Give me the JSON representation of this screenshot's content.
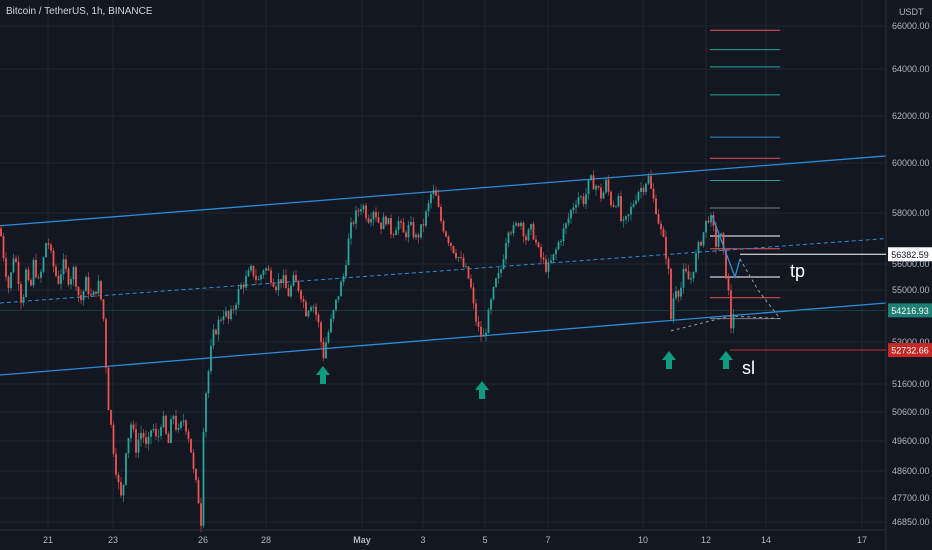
{
  "header": {
    "symbol_line": "Bitcoin / TetherUS, 1h, BINANCE"
  },
  "colors": {
    "background": "#131722",
    "grid": "#1f2430",
    "axis_text": "#b2b5be",
    "up": "#26a69a",
    "down": "#ef5350",
    "channel": "#2b8cd6",
    "arrow": "#0e9c80",
    "annotation": "#ffffff",
    "price_badge_teal": "#1e7f74",
    "price_badge_red": "#c62828"
  },
  "chart_data": {
    "type": "candlestick",
    "title": "Bitcoin / TetherUS, 1h, BINANCE",
    "y_axis_unit": "USDT",
    "y_ticks": [
      {
        "label": "66000.00",
        "value": 66000
      },
      {
        "label": "64000.00",
        "value": 64000
      },
      {
        "label": "62000.00",
        "value": 62000
      },
      {
        "label": "60000.00",
        "value": 60000
      },
      {
        "label": "58000.00",
        "value": 58000
      },
      {
        "label": "56000.00",
        "value": 56000
      },
      {
        "label": "55000.00",
        "value": 55000
      },
      {
        "label": "53000.00",
        "value": 53000
      },
      {
        "label": "51600.00",
        "value": 51600
      },
      {
        "label": "50600.00",
        "value": 50600
      },
      {
        "label": "49600.00",
        "value": 49600
      },
      {
        "label": "48600.00",
        "value": 48600
      },
      {
        "label": "47700.00",
        "value": 47700
      },
      {
        "label": "46850.00",
        "value": 46850
      }
    ],
    "x_ticks": [
      "21",
      "23",
      "26",
      "28",
      "May",
      "3",
      "5",
      "7",
      "10",
      "12",
      "14",
      "17"
    ],
    "x_tick_bold": "May",
    "ohlc_path": [
      [
        0,
        57400
      ],
      [
        4,
        56200
      ],
      [
        9,
        55000
      ],
      [
        14,
        56500
      ],
      [
        18,
        55600
      ],
      [
        22,
        54400
      ],
      [
        26,
        55700
      ],
      [
        30,
        54800
      ],
      [
        34,
        56200
      ],
      [
        38,
        55200
      ],
      [
        42,
        55800
      ],
      [
        47,
        57100
      ],
      [
        52,
        56100
      ],
      [
        58,
        55300
      ],
      [
        63,
        56000
      ],
      [
        69,
        55400
      ],
      [
        74,
        55800
      ],
      [
        80,
        54500
      ],
      [
        86,
        55300
      ],
      [
        92,
        54600
      ],
      [
        98,
        55300
      ],
      [
        103,
        54200
      ],
      [
        108,
        51000
      ],
      [
        113,
        49500
      ],
      [
        118,
        48200
      ],
      [
        122,
        47500
      ],
      [
        126,
        49400
      ],
      [
        131,
        50200
      ],
      [
        136,
        49400
      ],
      [
        142,
        50000
      ],
      [
        147,
        49200
      ],
      [
        152,
        50200
      ],
      [
        157,
        49500
      ],
      [
        162,
        50500
      ],
      [
        168,
        49400
      ],
      [
        173,
        50600
      ],
      [
        178,
        49800
      ],
      [
        184,
        50400
      ],
      [
        190,
        49600
      ],
      [
        194,
        48400
      ],
      [
        198,
        47800
      ],
      [
        201,
        46900
      ],
      [
        204,
        50800
      ],
      [
        208,
        51900
      ],
      [
        213,
        53200
      ],
      [
        218,
        53700
      ],
      [
        224,
        54200
      ],
      [
        229,
        53800
      ],
      [
        235,
        54500
      ],
      [
        240,
        55100
      ],
      [
        246,
        55400
      ],
      [
        252,
        55800
      ],
      [
        258,
        55300
      ],
      [
        264,
        55900
      ],
      [
        270,
        55600
      ],
      [
        276,
        55200
      ],
      [
        282,
        55500
      ],
      [
        288,
        54800
      ],
      [
        294,
        55400
      ],
      [
        300,
        55000
      ],
      [
        306,
        54200
      ],
      [
        312,
        54600
      ],
      [
        318,
        53800
      ],
      [
        323,
        52500
      ],
      [
        326,
        53000
      ],
      [
        332,
        53900
      ],
      [
        338,
        54800
      ],
      [
        344,
        55600
      ],
      [
        348,
        56800
      ],
      [
        352,
        57600
      ],
      [
        356,
        57900
      ],
      [
        362,
        58400
      ],
      [
        368,
        57800
      ],
      [
        374,
        58200
      ],
      [
        380,
        57500
      ],
      [
        386,
        57800
      ],
      [
        392,
        57200
      ],
      [
        398,
        57700
      ],
      [
        404,
        57100
      ],
      [
        410,
        57500
      ],
      [
        416,
        57000
      ],
      [
        422,
        57400
      ],
      [
        428,
        58200
      ],
      [
        432,
        58900
      ],
      [
        436,
        58600
      ],
      [
        440,
        57800
      ],
      [
        446,
        57200
      ],
      [
        452,
        56700
      ],
      [
        458,
        56300
      ],
      [
        462,
        56000
      ],
      [
        466,
        55700
      ],
      [
        470,
        55300
      ],
      [
        474,
        54200
      ],
      [
        478,
        53500
      ],
      [
        483,
        53100
      ],
      [
        487,
        53700
      ],
      [
        491,
        54500
      ],
      [
        496,
        55300
      ],
      [
        500,
        55600
      ],
      [
        504,
        56500
      ],
      [
        508,
        57500
      ],
      [
        514,
        57300
      ],
      [
        520,
        57800
      ],
      [
        526,
        57000
      ],
      [
        532,
        57400
      ],
      [
        538,
        56500
      ],
      [
        544,
        56000
      ],
      [
        548,
        55800
      ],
      [
        554,
        56300
      ],
      [
        560,
        57000
      ],
      [
        566,
        57500
      ],
      [
        572,
        58200
      ],
      [
        578,
        58700
      ],
      [
        584,
        58500
      ],
      [
        590,
        59300
      ],
      [
        596,
        59100
      ],
      [
        602,
        58600
      ],
      [
        606,
        59200
      ],
      [
        612,
        58300
      ],
      [
        618,
        58600
      ],
      [
        622,
        57400
      ],
      [
        628,
        57800
      ],
      [
        634,
        58500
      ],
      [
        638,
        58900
      ],
      [
        644,
        59100
      ],
      [
        648,
        59500
      ],
      [
        652,
        58700
      ],
      [
        656,
        58200
      ],
      [
        660,
        57400
      ],
      [
        664,
        56800
      ],
      [
        668,
        56000
      ],
      [
        671,
        53900
      ],
      [
        675,
        55200
      ],
      [
        680,
        54900
      ],
      [
        684,
        55700
      ],
      [
        690,
        55300
      ],
      [
        694,
        56000
      ],
      [
        699,
        56700
      ],
      [
        704,
        57300
      ],
      [
        708,
        57900
      ],
      [
        712,
        57600
      ],
      [
        716,
        56800
      ],
      [
        720,
        57300
      ],
      [
        724,
        56200
      ],
      [
        728,
        55100
      ],
      [
        731,
        53600
      ],
      [
        734,
        54300
      ]
    ],
    "channel_lines": [
      {
        "name": "upper",
        "from": [
          0,
          57500
        ],
        "to": [
          886,
          60300
        ]
      },
      {
        "name": "lower",
        "from": [
          0,
          51900
        ],
        "to": [
          886,
          54500
        ]
      }
    ],
    "mid_line": {
      "from": [
        0,
        54500
      ],
      "to": [
        886,
        57000
      ]
    },
    "projection_path": [
      [
        712,
        57900
      ],
      [
        735,
        55500
      ],
      [
        740,
        56200
      ],
      [
        758,
        55000
      ],
      [
        780,
        53900
      ],
      [
        730,
        54000
      ],
      [
        668,
        53400
      ]
    ],
    "levels": [
      {
        "price": 65800,
        "color": "#ef5350"
      },
      {
        "price": 64900,
        "color": "#26a69a"
      },
      {
        "price": 64100,
        "color": "#26a69a"
      },
      {
        "price": 62900,
        "color": "#26a69a"
      },
      {
        "price": 61100,
        "color": "#2b8cd6"
      },
      {
        "price": 60200,
        "color": "#ef5350"
      },
      {
        "price": 59300,
        "color": "#26a69a"
      },
      {
        "price": 58200,
        "color": "#787b86"
      },
      {
        "price": 57100,
        "color": "#ffffff"
      },
      {
        "price": 56600,
        "color": "#ef5350"
      },
      {
        "price": 55500,
        "color": "#ffffff"
      },
      {
        "price": 54700,
        "color": "#ef5350"
      },
      {
        "price": 53900,
        "color": "#787b86"
      }
    ],
    "price_labels": [
      {
        "label": "56382.59",
        "price": 56382,
        "style": "white"
      },
      {
        "label": "54216.93",
        "price": 54216,
        "style": "teal"
      },
      {
        "label": "52732.66",
        "price": 52732,
        "style": "red"
      }
    ],
    "arrows": [
      [
        323,
        52200
      ],
      [
        482,
        51700
      ],
      [
        669,
        52700
      ],
      [
        726,
        52700
      ]
    ],
    "annotations": [
      {
        "text": "tp",
        "price": 55800,
        "x": 790
      },
      {
        "text": "sl",
        "price": 52200,
        "x": 742
      }
    ]
  }
}
